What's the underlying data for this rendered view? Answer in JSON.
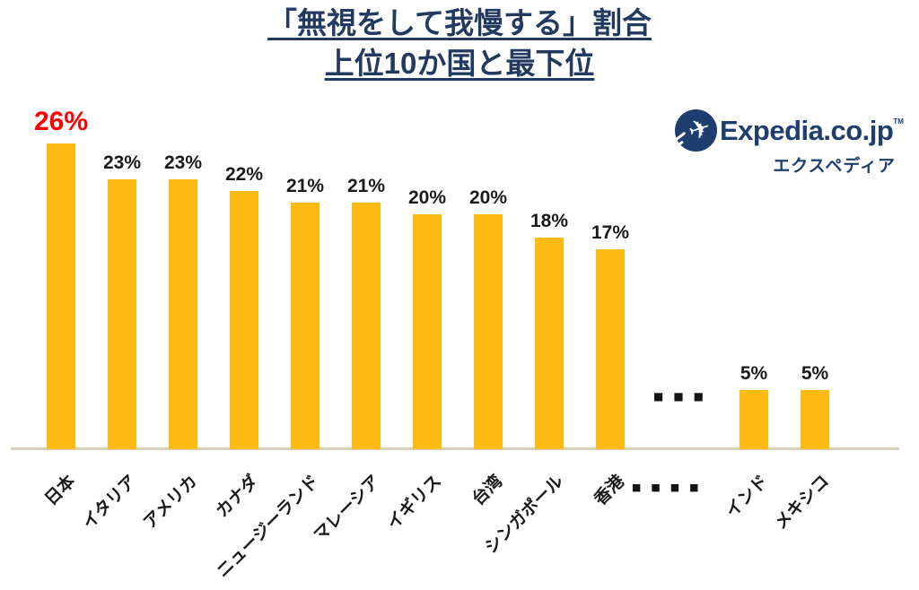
{
  "title": {
    "line1": "「無視をして我慢する」割合",
    "line2": "上位10か国と最下位"
  },
  "logo": {
    "brand": "Expedia.co.jp",
    "trademark": "TM",
    "subtitle": "エクスペディア",
    "navy": "#1d3e6e"
  },
  "chart_data": {
    "type": "bar",
    "title": "「無視をして我慢する」割合 上位10か国と最下位",
    "categories": [
      "日本",
      "イタリア",
      "アメリカ",
      "カナダ",
      "ニュージーランド",
      "マレーシア",
      "イギリス",
      "台湾",
      "シンガポール",
      "香港",
      "インド",
      "メキシコ"
    ],
    "values": [
      26,
      23,
      23,
      22,
      21,
      21,
      20,
      20,
      18,
      17,
      5,
      5
    ],
    "value_labels": [
      "26%",
      "23%",
      "23%",
      "22%",
      "21%",
      "21%",
      "20%",
      "20%",
      "18%",
      "17%",
      "5%",
      "5%"
    ],
    "highlight_index": 0,
    "highlight_color": "#ff0000",
    "label_color": "#1a1a1a",
    "bar_color": "#fdbb11",
    "axis_line_color": "#d8d1bf",
    "gap_after_index": 9,
    "gap_ellipsis_plot": "■■■",
    "gap_ellipsis_axis": "■■■■",
    "ylim": [
      0,
      28
    ],
    "grid": false,
    "legend": false,
    "yaxis_visible": false,
    "xlabel": "",
    "ylabel": ""
  }
}
